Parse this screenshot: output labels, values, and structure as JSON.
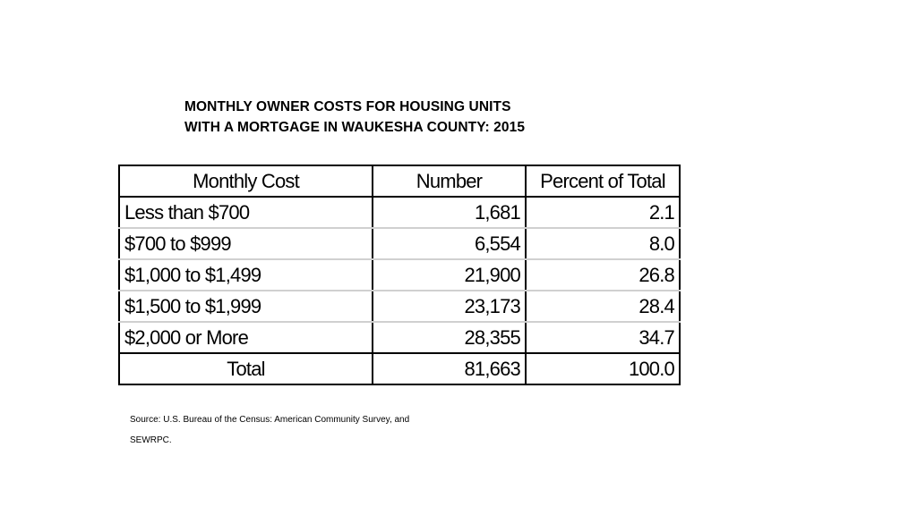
{
  "title": {
    "line1": "MONTHLY OWNER COSTS FOR HOUSING UNITS",
    "line2": "WITH A MORTGAGE IN WAUKESHA COUNTY: 2015"
  },
  "table": {
    "headers": [
      "Monthly Cost",
      "Number",
      "Percent of Total"
    ],
    "rows": [
      {
        "cost": "Less than $700",
        "number": "1,681",
        "percent": "2.1"
      },
      {
        "cost": "$700 to $999",
        "number": "6,554",
        "percent": "8.0"
      },
      {
        "cost": "$1,000 to $1,499",
        "number": "21,900",
        "percent": "26.8"
      },
      {
        "cost": "$1,500 to $1,999",
        "number": "23,173",
        "percent": "28.4"
      },
      {
        "cost": "$2,000 or More",
        "number": "28,355",
        "percent": "34.7"
      }
    ],
    "total": {
      "cost": "Total",
      "number": "81,663",
      "percent": "100.0"
    }
  },
  "source": {
    "line1": "Source: U.S. Bureau of the Census: American Community Survey, and",
    "line2": "SEWRPC."
  }
}
